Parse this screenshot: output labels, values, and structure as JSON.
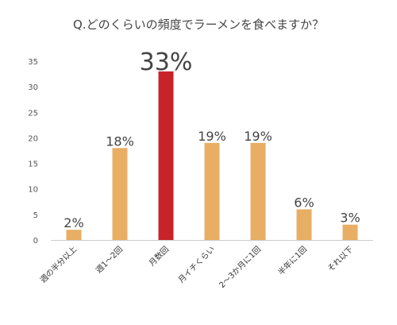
{
  "chart_data": {
    "type": "bar",
    "title": "Q.どのくらいの頻度でラーメンを食べますか？",
    "categories": [
      "週の半分以上",
      "週1～2回",
      "月数回",
      "月イチくらい",
      "2～3か月に1回",
      "半年に1回",
      "それ以下"
    ],
    "values": [
      2,
      18,
      33,
      19,
      19,
      6,
      3
    ],
    "data_labels": [
      "2%",
      "18%",
      "33%",
      "19%",
      "19%",
      "6%",
      "3%"
    ],
    "highlight_index": 2,
    "ylim": [
      0,
      35
    ],
    "yticks": [
      0,
      5,
      10,
      15,
      20,
      25,
      30,
      35
    ],
    "xlabel": "",
    "ylabel": "",
    "grid": false,
    "colors": {
      "bar": "#E8AE63",
      "highlight": "#C8232A",
      "axis": "#cccccc"
    }
  }
}
